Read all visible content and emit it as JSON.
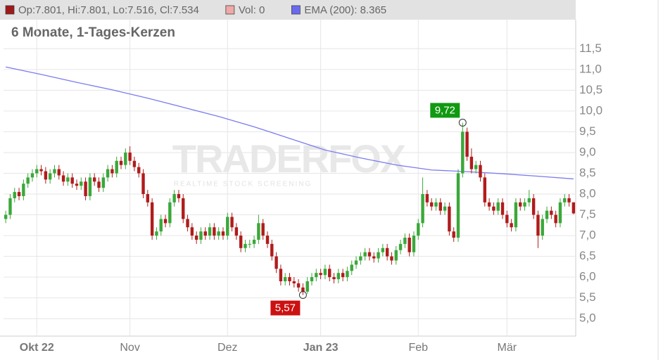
{
  "chart_data": {
    "type": "candlestick",
    "title": "6 Monate, 1-Tages-Kerzen",
    "legend": [
      "Op:7.801, Hi:7.801, Lo:7.516, Cl:7.534",
      "Vol: 0",
      "EMA (200): 8.365"
    ],
    "legend_colors": [
      "#a01818",
      "#f0a8a8",
      "#6a6af0"
    ],
    "watermark": {
      "title": "TRADERFOX",
      "subtitle": "REALTIME STOCK SCREENING"
    },
    "up_color": "#3aa83a",
    "down_color": "#b01c1c",
    "categories": [
      null,
      null,
      null,
      null,
      null,
      null,
      null,
      "Okt 22",
      null,
      null,
      null,
      null,
      null,
      null,
      null,
      null,
      null,
      null,
      null,
      null,
      null,
      null,
      null,
      null,
      null,
      null,
      null,
      null,
      "Nov",
      null,
      null,
      null,
      null,
      null,
      null,
      null,
      null,
      null,
      null,
      null,
      null,
      null,
      null,
      null,
      null,
      null,
      null,
      null,
      null,
      null,
      "Dez",
      null,
      null,
      null,
      null,
      null,
      null,
      null,
      null,
      null,
      null,
      null,
      null,
      null,
      null,
      null,
      null,
      null,
      null,
      null,
      null,
      "Jan 23",
      null,
      null,
      null,
      null,
      null,
      null,
      null,
      null,
      null,
      null,
      null,
      null,
      null,
      null,
      null,
      null,
      null,
      null,
      null,
      null,
      null,
      "Feb",
      null,
      null,
      null,
      null,
      null,
      null,
      null,
      null,
      null,
      null,
      null,
      null,
      null,
      null,
      null,
      null,
      null,
      null,
      null,
      "Mär",
      null,
      null,
      null,
      null,
      null,
      null,
      null,
      null,
      null,
      null,
      null,
      null,
      null,
      null,
      null
    ],
    "open": [
      7.4,
      7.5,
      7.9,
      8.05,
      7.95,
      8.25,
      8.4,
      8.5,
      8.6,
      8.55,
      8.35,
      8.5,
      8.6,
      8.45,
      8.3,
      8.4,
      8.25,
      8.2,
      8.3,
      7.95,
      8.4,
      8.3,
      8.15,
      8.4,
      8.6,
      8.5,
      8.8,
      8.7,
      9.0,
      8.8,
      8.65,
      8.5,
      8.0,
      7.8,
      7.0,
      7.1,
      7.4,
      7.3,
      7.8,
      8.0,
      7.9,
      7.4,
      7.2,
      7.0,
      6.9,
      7.1,
      7.0,
      7.2,
      7.0,
      7.1,
      7.0,
      7.45,
      7.2,
      7.0,
      6.7,
      6.8,
      6.8,
      6.9,
      7.3,
      7.0,
      6.8,
      6.5,
      6.2,
      5.9,
      6.0,
      5.9,
      5.85,
      5.75,
      5.65,
      5.9,
      6.0,
      6.1,
      6.05,
      6.2,
      6.0,
      5.95,
      6.1,
      6.0,
      6.15,
      6.3,
      6.4,
      6.5,
      6.6,
      6.5,
      6.45,
      6.6,
      6.7,
      6.5,
      6.4,
      6.65,
      6.8,
      6.95,
      6.6,
      7.0,
      7.3,
      8.0,
      7.8,
      7.7,
      7.8,
      7.6,
      7.7,
      7.1,
      6.95,
      8.5,
      9.5,
      8.9,
      8.6,
      8.7,
      8.4,
      7.8,
      7.7,
      7.6,
      7.8,
      7.5,
      7.3,
      7.2,
      7.8,
      7.7,
      7.8,
      7.9,
      7.5,
      7.0,
      7.4,
      7.6,
      7.5,
      7.3,
      7.8,
      7.9,
      7.801
    ],
    "high": [
      7.6,
      8.0,
      8.15,
      8.15,
      8.35,
      8.5,
      8.6,
      8.7,
      8.7,
      8.65,
      8.6,
      8.7,
      8.7,
      8.55,
      8.5,
      8.5,
      8.35,
      8.4,
      8.4,
      8.5,
      8.5,
      8.4,
      8.5,
      8.7,
      8.7,
      8.9,
      8.9,
      9.1,
      9.15,
      8.9,
      8.75,
      8.6,
      8.1,
      7.9,
      7.2,
      7.5,
      7.5,
      7.9,
      8.1,
      8.1,
      8.0,
      7.5,
      7.3,
      7.1,
      7.2,
      7.2,
      7.3,
      7.3,
      7.2,
      7.2,
      7.55,
      7.55,
      7.3,
      7.1,
      6.9,
      6.9,
      7.0,
      7.5,
      7.4,
      7.1,
      6.9,
      6.6,
      6.3,
      6.1,
      6.1,
      6.0,
      5.95,
      5.85,
      6.0,
      6.1,
      6.2,
      6.2,
      6.3,
      6.3,
      6.1,
      6.2,
      6.2,
      6.25,
      6.4,
      6.5,
      6.6,
      6.7,
      6.7,
      6.6,
      6.7,
      6.8,
      6.8,
      6.6,
      6.75,
      6.9,
      7.05,
      7.05,
      7.1,
      7.4,
      8.4,
      8.1,
      7.9,
      7.9,
      7.9,
      7.8,
      7.8,
      7.2,
      8.6,
      9.72,
      9.6,
      9.1,
      8.8,
      8.8,
      8.5,
      7.9,
      7.8,
      7.9,
      7.9,
      7.6,
      7.4,
      7.9,
      7.9,
      7.9,
      8.1,
      8.0,
      7.6,
      7.5,
      7.7,
      7.7,
      7.6,
      7.9,
      8.0,
      8.0,
      7.801
    ],
    "low": [
      7.3,
      7.4,
      7.8,
      7.85,
      7.85,
      8.15,
      8.3,
      8.4,
      8.45,
      8.25,
      8.25,
      8.4,
      8.35,
      8.2,
      8.2,
      8.15,
      8.1,
      8.1,
      7.85,
      7.85,
      8.2,
      8.05,
      8.05,
      8.3,
      8.4,
      8.4,
      8.6,
      8.6,
      8.7,
      8.55,
      8.4,
      7.9,
      7.7,
      6.9,
      6.9,
      7.0,
      7.2,
      7.2,
      7.7,
      7.8,
      7.3,
      7.1,
      6.9,
      6.8,
      6.8,
      6.9,
      6.9,
      6.9,
      6.9,
      6.9,
      6.9,
      7.1,
      6.9,
      6.6,
      6.6,
      6.7,
      6.7,
      6.8,
      6.9,
      6.7,
      6.4,
      6.1,
      5.8,
      5.8,
      5.8,
      5.75,
      5.65,
      5.57,
      5.6,
      5.8,
      5.9,
      5.95,
      5.95,
      5.9,
      5.85,
      5.85,
      5.9,
      5.9,
      6.05,
      6.2,
      6.3,
      6.4,
      6.4,
      6.35,
      6.35,
      6.5,
      6.4,
      6.3,
      6.3,
      6.55,
      6.7,
      6.5,
      6.5,
      6.9,
      7.2,
      7.7,
      7.6,
      7.6,
      7.5,
      7.5,
      7.0,
      6.85,
      6.85,
      8.4,
      8.8,
      8.5,
      8.5,
      8.3,
      7.7,
      7.6,
      7.5,
      7.5,
      7.4,
      7.2,
      7.1,
      7.1,
      7.6,
      7.6,
      7.7,
      7.4,
      6.7,
      6.9,
      7.3,
      7.4,
      7.2,
      7.2,
      7.7,
      7.7,
      7.516
    ],
    "close": [
      7.5,
      7.9,
      8.05,
      7.95,
      8.25,
      8.4,
      8.5,
      8.6,
      8.55,
      8.35,
      8.5,
      8.6,
      8.45,
      8.3,
      8.4,
      8.25,
      8.2,
      8.3,
      7.95,
      8.4,
      8.3,
      8.15,
      8.4,
      8.6,
      8.5,
      8.8,
      8.7,
      9.0,
      8.8,
      8.65,
      8.5,
      8.0,
      7.8,
      7.0,
      7.1,
      7.4,
      7.3,
      7.8,
      8.0,
      7.9,
      7.4,
      7.2,
      7.0,
      6.9,
      7.1,
      7.0,
      7.2,
      7.0,
      7.1,
      7.0,
      7.45,
      7.2,
      7.0,
      6.7,
      6.8,
      6.8,
      6.9,
      7.3,
      7.0,
      6.8,
      6.5,
      6.2,
      5.9,
      6.0,
      5.9,
      5.85,
      5.75,
      5.65,
      5.9,
      6.0,
      6.1,
      6.05,
      6.2,
      6.0,
      5.95,
      6.1,
      6.0,
      6.15,
      6.3,
      6.4,
      6.5,
      6.6,
      6.5,
      6.45,
      6.6,
      6.7,
      6.5,
      6.4,
      6.65,
      6.8,
      6.95,
      6.6,
      7.0,
      7.3,
      8.0,
      7.8,
      7.7,
      7.8,
      7.6,
      7.7,
      7.1,
      6.95,
      8.5,
      9.5,
      8.9,
      8.6,
      8.7,
      8.4,
      7.8,
      7.7,
      7.6,
      7.8,
      7.5,
      7.3,
      7.2,
      7.8,
      7.7,
      7.8,
      7.9,
      7.5,
      7.0,
      7.4,
      7.6,
      7.5,
      7.3,
      7.8,
      7.9,
      7.8,
      7.534
    ],
    "ema": {
      "color": "#7b7bef",
      "x": [
        0,
        8,
        16,
        24,
        32,
        40,
        48,
        56,
        64,
        72,
        80,
        88,
        96,
        104,
        112,
        120,
        128
      ],
      "values": [
        11.06,
        10.88,
        10.69,
        10.51,
        10.31,
        10.09,
        9.87,
        9.62,
        9.34,
        9.06,
        8.87,
        8.7,
        8.58,
        8.54,
        8.49,
        8.43,
        8.365
      ]
    },
    "annotations": [
      {
        "label": "9,72",
        "value": 9.72,
        "field": "high",
        "color": "#119911"
      },
      {
        "label": "5,57",
        "value": 5.57,
        "field": "low",
        "color": "#cc1111"
      }
    ],
    "ylim": [
      4.58,
      12.25
    ],
    "yticks": [
      {
        "value": 5.0,
        "label": "5,0"
      },
      {
        "value": 5.5,
        "label": "5,5"
      },
      {
        "value": 6.0,
        "label": "6,0"
      },
      {
        "value": 6.5,
        "label": "6,5"
      },
      {
        "value": 7.0,
        "label": "7,0"
      },
      {
        "value": 7.5,
        "label": "7,5"
      },
      {
        "value": 8.0,
        "label": "8,0"
      },
      {
        "value": 8.5,
        "label": "8,5"
      },
      {
        "value": 9.0,
        "label": "9,0"
      },
      {
        "value": 9.5,
        "label": "9,5"
      },
      {
        "value": 10.0,
        "label": "10,0"
      },
      {
        "value": 10.5,
        "label": "10,5"
      },
      {
        "value": 11.0,
        "label": "11,0"
      },
      {
        "value": 11.5,
        "label": "11,5"
      }
    ],
    "grid": true
  }
}
